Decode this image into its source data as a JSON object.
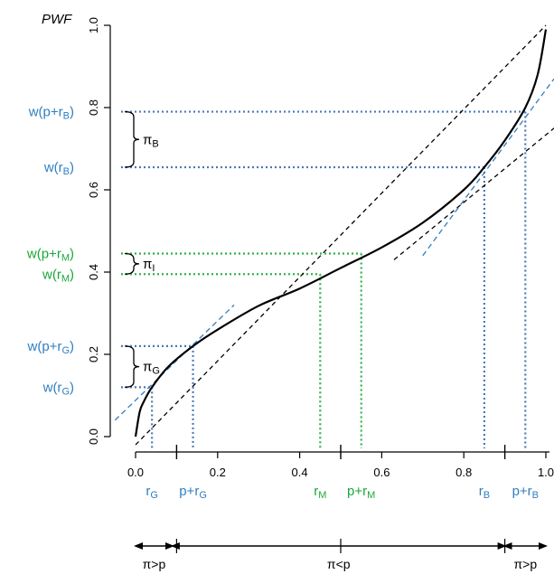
{
  "chart_data": {
    "type": "line",
    "title": "",
    "ylabel": "PWF",
    "xlabel": "",
    "xlim": [
      0,
      1
    ],
    "ylim": [
      0,
      1
    ],
    "x_ticks": [
      "0.0",
      "0.2",
      "0.4",
      "0.6",
      "0.8",
      "1.0"
    ],
    "y_ticks": [
      "0.0",
      "0.2",
      "0.4",
      "0.6",
      "0.8",
      "1.0"
    ],
    "curve_points": [
      [
        0,
        0.0
      ],
      [
        0.01,
        0.06
      ],
      [
        0.02,
        0.085
      ],
      [
        0.04,
        0.12
      ],
      [
        0.08,
        0.17
      ],
      [
        0.14,
        0.22
      ],
      [
        0.2,
        0.26
      ],
      [
        0.3,
        0.318
      ],
      [
        0.4,
        0.36
      ],
      [
        0.5,
        0.41
      ],
      [
        0.6,
        0.46
      ],
      [
        0.7,
        0.52
      ],
      [
        0.8,
        0.6
      ],
      [
        0.85,
        0.655
      ],
      [
        0.9,
        0.72
      ],
      [
        0.95,
        0.8
      ],
      [
        0.98,
        0.88
      ],
      [
        1.0,
        0.99
      ]
    ],
    "colors": {
      "blue": "#2f7fc1",
      "green": "#1aa83a",
      "dot_blue": "#4a78b6",
      "dot_green": "#2bb24c",
      "black": "#000000"
    },
    "y_markers": [
      {
        "value": 0.12,
        "x": 0.04,
        "color": "blue",
        "label_parts": [
          "w(r",
          "G",
          ")"
        ]
      },
      {
        "value": 0.22,
        "x": 0.14,
        "color": "blue",
        "label_parts": [
          "w(p+r",
          "G",
          ")"
        ]
      },
      {
        "value": 0.395,
        "x": 0.45,
        "color": "green",
        "label_parts": [
          "w(r",
          "M",
          ")"
        ]
      },
      {
        "value": 0.445,
        "x": 0.55,
        "color": "green",
        "label_parts": [
          "w(p+r",
          "M",
          ")"
        ]
      },
      {
        "value": 0.655,
        "x": 0.85,
        "color": "blue",
        "label_parts": [
          "w(r",
          "B",
          ")"
        ]
      },
      {
        "value": 0.79,
        "x": 0.95,
        "color": "blue",
        "label_parts": [
          "w(p+r",
          "B",
          ")"
        ]
      }
    ],
    "x_markers": [
      {
        "value": 0.04,
        "color": "blue",
        "label_parts": [
          "r",
          "G",
          ""
        ]
      },
      {
        "value": 0.14,
        "color": "blue",
        "label_parts": [
          "p+r",
          "G",
          ""
        ]
      },
      {
        "value": 0.45,
        "color": "green",
        "label_parts": [
          "r",
          "M",
          ""
        ]
      },
      {
        "value": 0.55,
        "color": "green",
        "label_parts": [
          "p+r",
          "M",
          ""
        ]
      },
      {
        "value": 0.85,
        "color": "blue",
        "label_parts": [
          "r",
          "B",
          ""
        ]
      },
      {
        "value": 0.95,
        "color": "blue",
        "label_parts": [
          "p+r",
          "B",
          ""
        ]
      }
    ],
    "brackets": [
      {
        "y_low": 0.12,
        "y_high": 0.22,
        "label_parts": [
          "π",
          "G"
        ]
      },
      {
        "y_low": 0.395,
        "y_high": 0.445,
        "label_parts": [
          "π",
          "I"
        ]
      },
      {
        "y_low": 0.655,
        "y_high": 0.79,
        "label_parts": [
          "π",
          "B"
        ]
      }
    ],
    "x_axis_extra_ticks": [
      0.1,
      0.5,
      0.9
    ],
    "black_dashed_lines": [
      {
        "from": [
          0.0,
          -0.02
        ],
        "to": [
          1.0,
          1.0
        ]
      },
      {
        "from": [
          0.63,
          0.43
        ],
        "to": [
          1.02,
          0.75
        ]
      }
    ],
    "blue_dashed_lines": [
      {
        "from": [
          -0.05,
          0.04
        ],
        "to": [
          0.24,
          0.32
        ]
      },
      {
        "from": [
          0.7,
          0.44
        ],
        "to": [
          1.02,
          0.87
        ]
      }
    ],
    "regions": [
      {
        "from": 0.0,
        "to": 0.09,
        "label": "π>p"
      },
      {
        "from": 0.09,
        "to": 0.9,
        "label": "π<p"
      },
      {
        "from": 0.9,
        "to": 1.0,
        "label": "π>p"
      }
    ]
  }
}
